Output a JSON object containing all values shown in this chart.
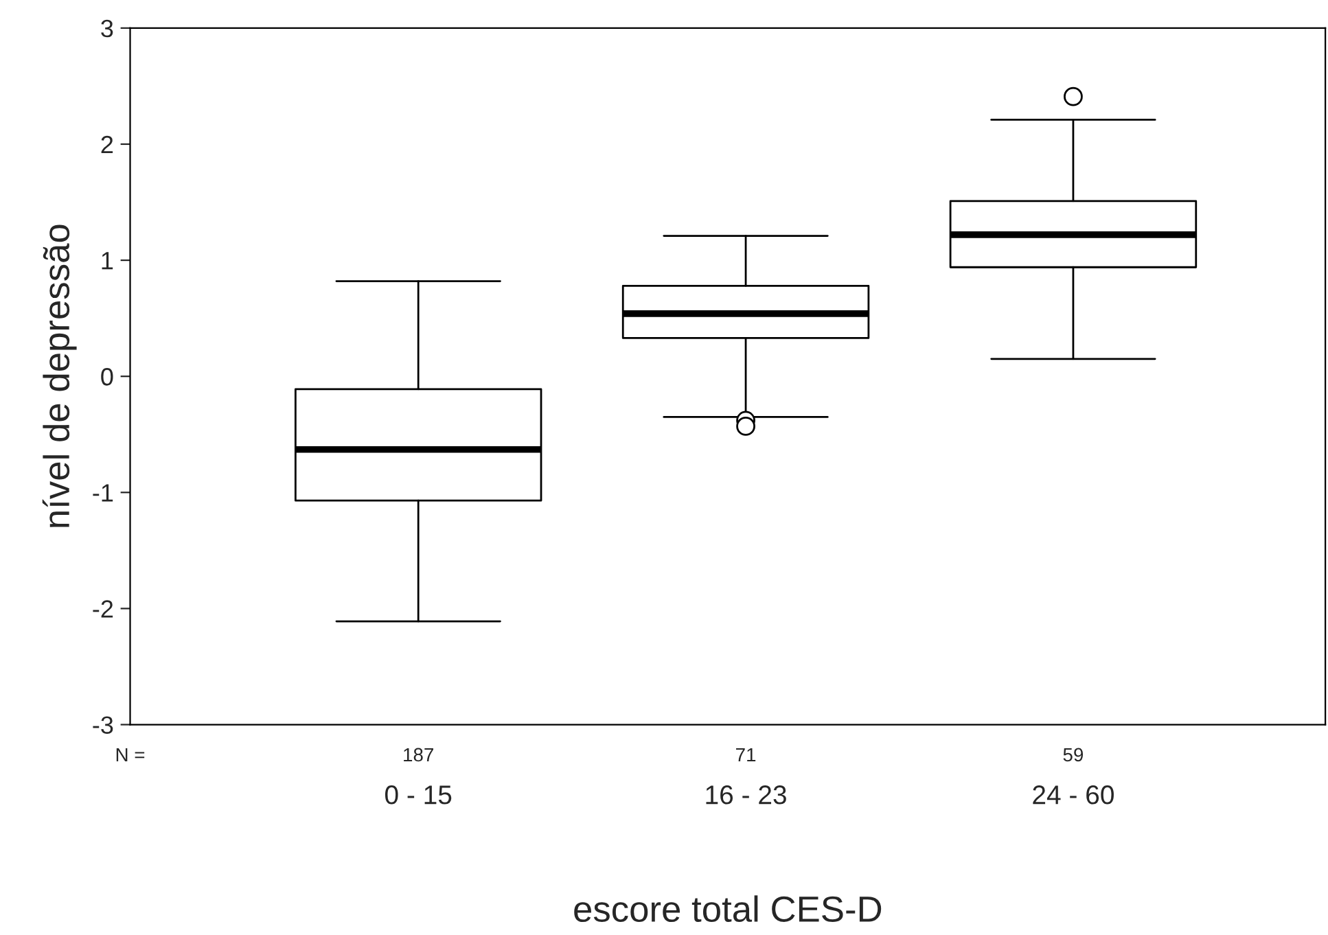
{
  "chart_data": {
    "type": "box",
    "xlabel": "escore total CES-D",
    "ylabel": "nível de depressão",
    "categories": [
      "0 - 15",
      "16 - 23",
      "24 - 60"
    ],
    "boxes": [
      {
        "low": -2.11,
        "q1": -1.07,
        "median": -0.63,
        "q3": -0.11,
        "high": 0.82
      },
      {
        "low": -0.35,
        "q1": 0.33,
        "median": 0.54,
        "q3": 0.78,
        "high": 1.21,
        "outliers": [
          -0.38,
          -0.43
        ]
      },
      {
        "low": 0.15,
        "q1": 0.94,
        "median": 1.22,
        "q3": 1.51,
        "high": 2.21,
        "outliers": [
          2.41
        ]
      }
    ],
    "ylim": [
      -3,
      3
    ],
    "yticks": [
      -3,
      -2,
      -1,
      0,
      1,
      2,
      3
    ],
    "grid": false,
    "legend": false,
    "annotations": [
      "N =",
      "187",
      "71",
      "59"
    ]
  }
}
